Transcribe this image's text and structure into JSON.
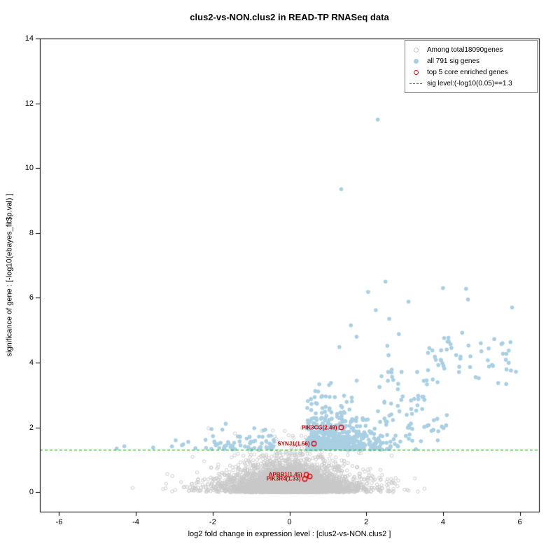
{
  "chart_data": {
    "type": "scatter",
    "subtype": "volcano",
    "title": "clus2-vs-NON.clus2 in READ-TP RNASeq data",
    "xlabel": "log2 fold change in expression level : [clus2-vs-NON.clus2 ]",
    "ylabel": "significance of gene : [-log10(ebayes_fit$p.val) ]",
    "xlim": [
      -6.5,
      6.5
    ],
    "ylim": [
      -0.6,
      14
    ],
    "xticks": [
      -6,
      -4,
      -2,
      0,
      2,
      4,
      6
    ],
    "yticks": [
      0,
      2,
      4,
      6,
      8,
      10,
      12,
      14
    ],
    "grid": false,
    "sig_line": {
      "y": 1.3,
      "color": "#00b400",
      "style": "dashed",
      "label": "sig level:(-log10(0.05)==1.3"
    },
    "series": [
      {
        "name": "Among total18090genes",
        "marker": "open-circle",
        "color": "#c8c8c8",
        "total_count": 18090,
        "synth": {
          "seed": 1234,
          "rendered_count": 6000,
          "x_center": 0,
          "y_shape": "neg-log10-uniform",
          "y_scale": 0.6,
          "x_range": [
            -4.5,
            4.5
          ],
          "y_max": 2.35
        }
      },
      {
        "name": "all 791 sig genes",
        "marker": "filled-circle",
        "color": "#a9cfe2",
        "total_count": 791,
        "synth": {
          "seed": 777,
          "rendered_count": 760,
          "x_range": [
            -4.6,
            6.0
          ],
          "y_min": 1.32,
          "y_max": 6.8
        },
        "explicit_points": [
          [
            2.3,
            11.5
          ],
          [
            1.35,
            9.35
          ],
          [
            2.5,
            6.5
          ],
          [
            4.0,
            6.3
          ],
          [
            4.6,
            6.28
          ],
          [
            2.05,
            6.18
          ],
          [
            4.65,
            5.95
          ],
          [
            3.1,
            5.88
          ],
          [
            5.8,
            5.7
          ],
          [
            2.25,
            5.62
          ],
          [
            2.6,
            5.35
          ],
          [
            1.6,
            5.15
          ],
          [
            4.5,
            4.92
          ],
          [
            2.85,
            4.88
          ],
          [
            1.75,
            4.8
          ],
          [
            4.15,
            4.65
          ],
          [
            5.55,
            4.6
          ],
          [
            2.55,
            4.52
          ],
          [
            1.3,
            4.48
          ],
          [
            3.95,
            4.38
          ],
          [
            5.0,
            4.35
          ],
          [
            4.45,
            4.12
          ],
          [
            5.3,
            3.9
          ],
          [
            5.9,
            3.72
          ],
          [
            4.85,
            3.55
          ],
          [
            -4.5,
            1.35
          ],
          [
            -4.3,
            1.42
          ],
          [
            -3.55,
            1.38
          ],
          [
            -2.8,
            1.45
          ],
          [
            -2.45,
            1.36
          ],
          [
            -1.6,
            1.55
          ]
        ]
      },
      {
        "name": "top 5 core enriched genes",
        "marker": "open-circle",
        "color": "#dd0000",
        "total_count": 5,
        "points": [
          {
            "label": "PIK3CG(2.49)",
            "x": 1.35,
            "y": 2.0
          },
          {
            "label": "SYNJ1(1.56)",
            "x": 0.64,
            "y": 1.5
          },
          {
            "label": "APBB1(1.45)",
            "x": 0.44,
            "y": 0.54
          },
          {
            "label": "PIK3R4(1.33)",
            "x": 0.4,
            "y": 0.41
          },
          {
            "label": "",
            "x": 0.53,
            "y": 0.49
          }
        ]
      }
    ],
    "legend": {
      "position": "top-right",
      "items": [
        {
          "marker": "open-circle",
          "color": "#c8c8c8",
          "label": "Among total18090genes"
        },
        {
          "marker": "filled-circle",
          "color": "#a9cfe2",
          "label": "all 791 sig genes"
        },
        {
          "marker": "open-circle",
          "color": "#dd0000",
          "label": "top 5 core enriched genes"
        },
        {
          "marker": "dashed-line",
          "color": "#00b400",
          "label": "sig level:(-log10(0.05)==1.3"
        }
      ]
    }
  }
}
